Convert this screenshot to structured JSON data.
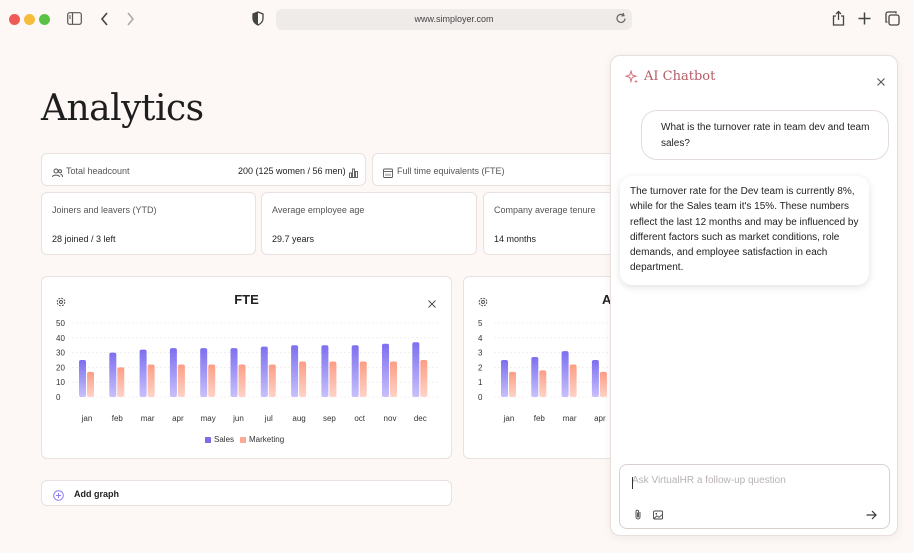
{
  "browser": {
    "url": "www.simployer.com"
  },
  "page": {
    "title": "Analytics"
  },
  "stats": {
    "headcount": {
      "label": "Total headcount",
      "value": "200 (125 women / 56 men)"
    },
    "fte": {
      "label": "Full time equivalents (FTE)"
    },
    "joiners": {
      "label": "Joiners and leavers (YTD)",
      "value": "28 joined / 3 left"
    },
    "age": {
      "label": "Average employee age",
      "value": "29.7 years"
    },
    "tenure": {
      "label": "Company average tenure",
      "value": "14 months"
    }
  },
  "charts": {
    "fte": {
      "title": "FTE"
    },
    "second": {
      "title": "A"
    }
  },
  "add_graph": {
    "label": "Add graph"
  },
  "chat": {
    "title": "AI Chatbot",
    "user_message": "What is the turnover rate in team dev and team sales?",
    "bot_message": "The turnover rate for the Dev team is currently 8%, while for the Sales team it's 15%. These numbers reflect the last 12 months and may be influenced by different factors such as market conditions, role demands, and employee satisfaction in each department.",
    "input_placeholder": "Ask VirtualHR a follow-up question"
  },
  "colors": {
    "sales": "#8a7df0",
    "marketing": "#fcaa94",
    "accent": "#b65b67"
  },
  "chart_data": [
    {
      "type": "bar",
      "title": "FTE",
      "categories": [
        "jan",
        "feb",
        "mar",
        "apr",
        "may",
        "jun",
        "jul",
        "aug",
        "sep",
        "oct",
        "nov",
        "dec"
      ],
      "yticks": [
        0,
        10,
        20,
        30,
        40,
        50
      ],
      "ylim": [
        0,
        50
      ],
      "series": [
        {
          "name": "Sales",
          "values": [
            25,
            30,
            32,
            33,
            33,
            33,
            34,
            35,
            35,
            35,
            36,
            37
          ]
        },
        {
          "name": "Marketing",
          "values": [
            17,
            20,
            22,
            22,
            22,
            22,
            22,
            24,
            24,
            24,
            24,
            25
          ]
        }
      ],
      "legend": "bottom"
    },
    {
      "type": "bar",
      "title": "A",
      "categories": [
        "jan",
        "feb",
        "mar",
        "apr"
      ],
      "yticks": [
        0,
        1,
        2,
        3,
        4,
        5
      ],
      "ylim": [
        0,
        5
      ],
      "series": [
        {
          "name": "Sales",
          "values": [
            2.5,
            2.7,
            3.1,
            2.5
          ]
        },
        {
          "name": "Marketing",
          "values": [
            1.7,
            1.8,
            2.2,
            1.7
          ]
        }
      ]
    }
  ]
}
